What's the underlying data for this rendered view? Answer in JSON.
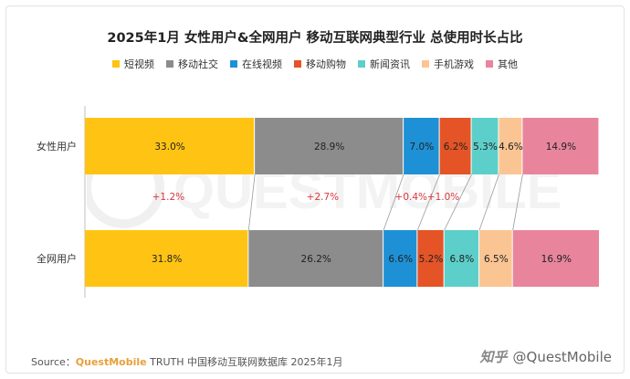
{
  "title": "2025年1月 女性用户&全网用户 移动互联网典型行业 总使用时长占比",
  "watermark_text": "QUESTMOBILE",
  "legend": [
    {
      "label": "短视频",
      "color": "#FFC413"
    },
    {
      "label": "移动社交",
      "color": "#8C8C8C"
    },
    {
      "label": "在线视频",
      "color": "#1E91D6"
    },
    {
      "label": "移动购物",
      "color": "#E45426"
    },
    {
      "label": "新闻资讯",
      "color": "#5DCFCA"
    },
    {
      "label": "手机游戏",
      "color": "#FBC593"
    },
    {
      "label": "其他",
      "color": "#E8859D"
    }
  ],
  "chart_data": {
    "type": "bar",
    "orientation": "horizontal",
    "stacked": true,
    "percent_stacked": true,
    "title": "2025年1月 女性用户&全网用户 移动互联网典型行业 总使用时长占比",
    "categories": [
      "女性用户",
      "全网用户"
    ],
    "series": [
      {
        "name": "短视频",
        "values": [
          33.0,
          31.8
        ],
        "labels": [
          "33.0%",
          "31.8%"
        ]
      },
      {
        "name": "移动社交",
        "values": [
          28.9,
          26.2
        ],
        "labels": [
          "28.9%",
          "26.2%"
        ]
      },
      {
        "name": "在线视频",
        "values": [
          7.0,
          6.6
        ],
        "labels": [
          "7.0%",
          "6.6%"
        ]
      },
      {
        "name": "移动购物",
        "values": [
          6.2,
          5.2
        ],
        "labels": [
          "6.2%",
          "5.2%"
        ]
      },
      {
        "name": "新闻资讯",
        "values": [
          5.3,
          6.8
        ],
        "labels": [
          "5.3%",
          "6.8%"
        ]
      },
      {
        "name": "手机游戏",
        "values": [
          4.6,
          6.5
        ],
        "labels": [
          "4.6%",
          "6.5%"
        ]
      },
      {
        "name": "其他",
        "values": [
          14.9,
          16.9
        ],
        "labels": [
          "14.9%",
          "16.9%"
        ]
      }
    ],
    "differences": [
      {
        "between": [
          "短视频"
        ],
        "label": "+1.2%"
      },
      {
        "between": [
          "移动社交"
        ],
        "label": "+2.7%"
      },
      {
        "between": [
          "在线视频"
        ],
        "label": "+0.4%"
      },
      {
        "between": [
          "移动购物"
        ],
        "label": "+1.0%"
      }
    ],
    "xlim": [
      0,
      100
    ],
    "grid": false,
    "legend_position": "top"
  },
  "footer": {
    "source_prefix": "Source：",
    "brand": "QuestMobile",
    "source_suffix": " TRUTH 中国移动互联网数据库 2025年1月",
    "zhihu": "知乎",
    "handle": "@QuestMobile"
  }
}
